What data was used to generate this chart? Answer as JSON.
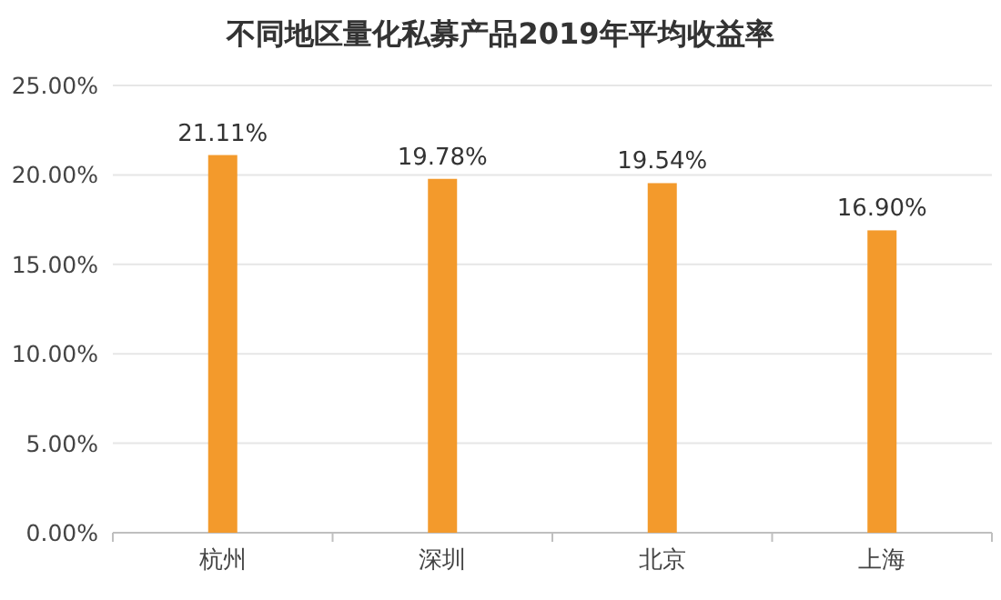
{
  "chart_data": {
    "type": "bar",
    "title": "不同地区量化私募产品2019年平均收益率",
    "categories": [
      "杭州",
      "深圳",
      "北京",
      "上海"
    ],
    "values": [
      21.11,
      19.78,
      19.54,
      16.9
    ],
    "value_labels": [
      "21.11%",
      "19.78%",
      "19.54%",
      "16.90%"
    ],
    "color": "#f39a2c",
    "ylim": [
      0,
      25
    ],
    "yticks": [
      {
        "value": 0,
        "label": "0.00%"
      },
      {
        "value": 5,
        "label": "5.00%"
      },
      {
        "value": 10,
        "label": "10.00%"
      },
      {
        "value": 15,
        "label": "15.00%"
      },
      {
        "value": 20,
        "label": "20.00%"
      },
      {
        "value": 25,
        "label": "25.00%"
      }
    ],
    "grid": "y"
  }
}
